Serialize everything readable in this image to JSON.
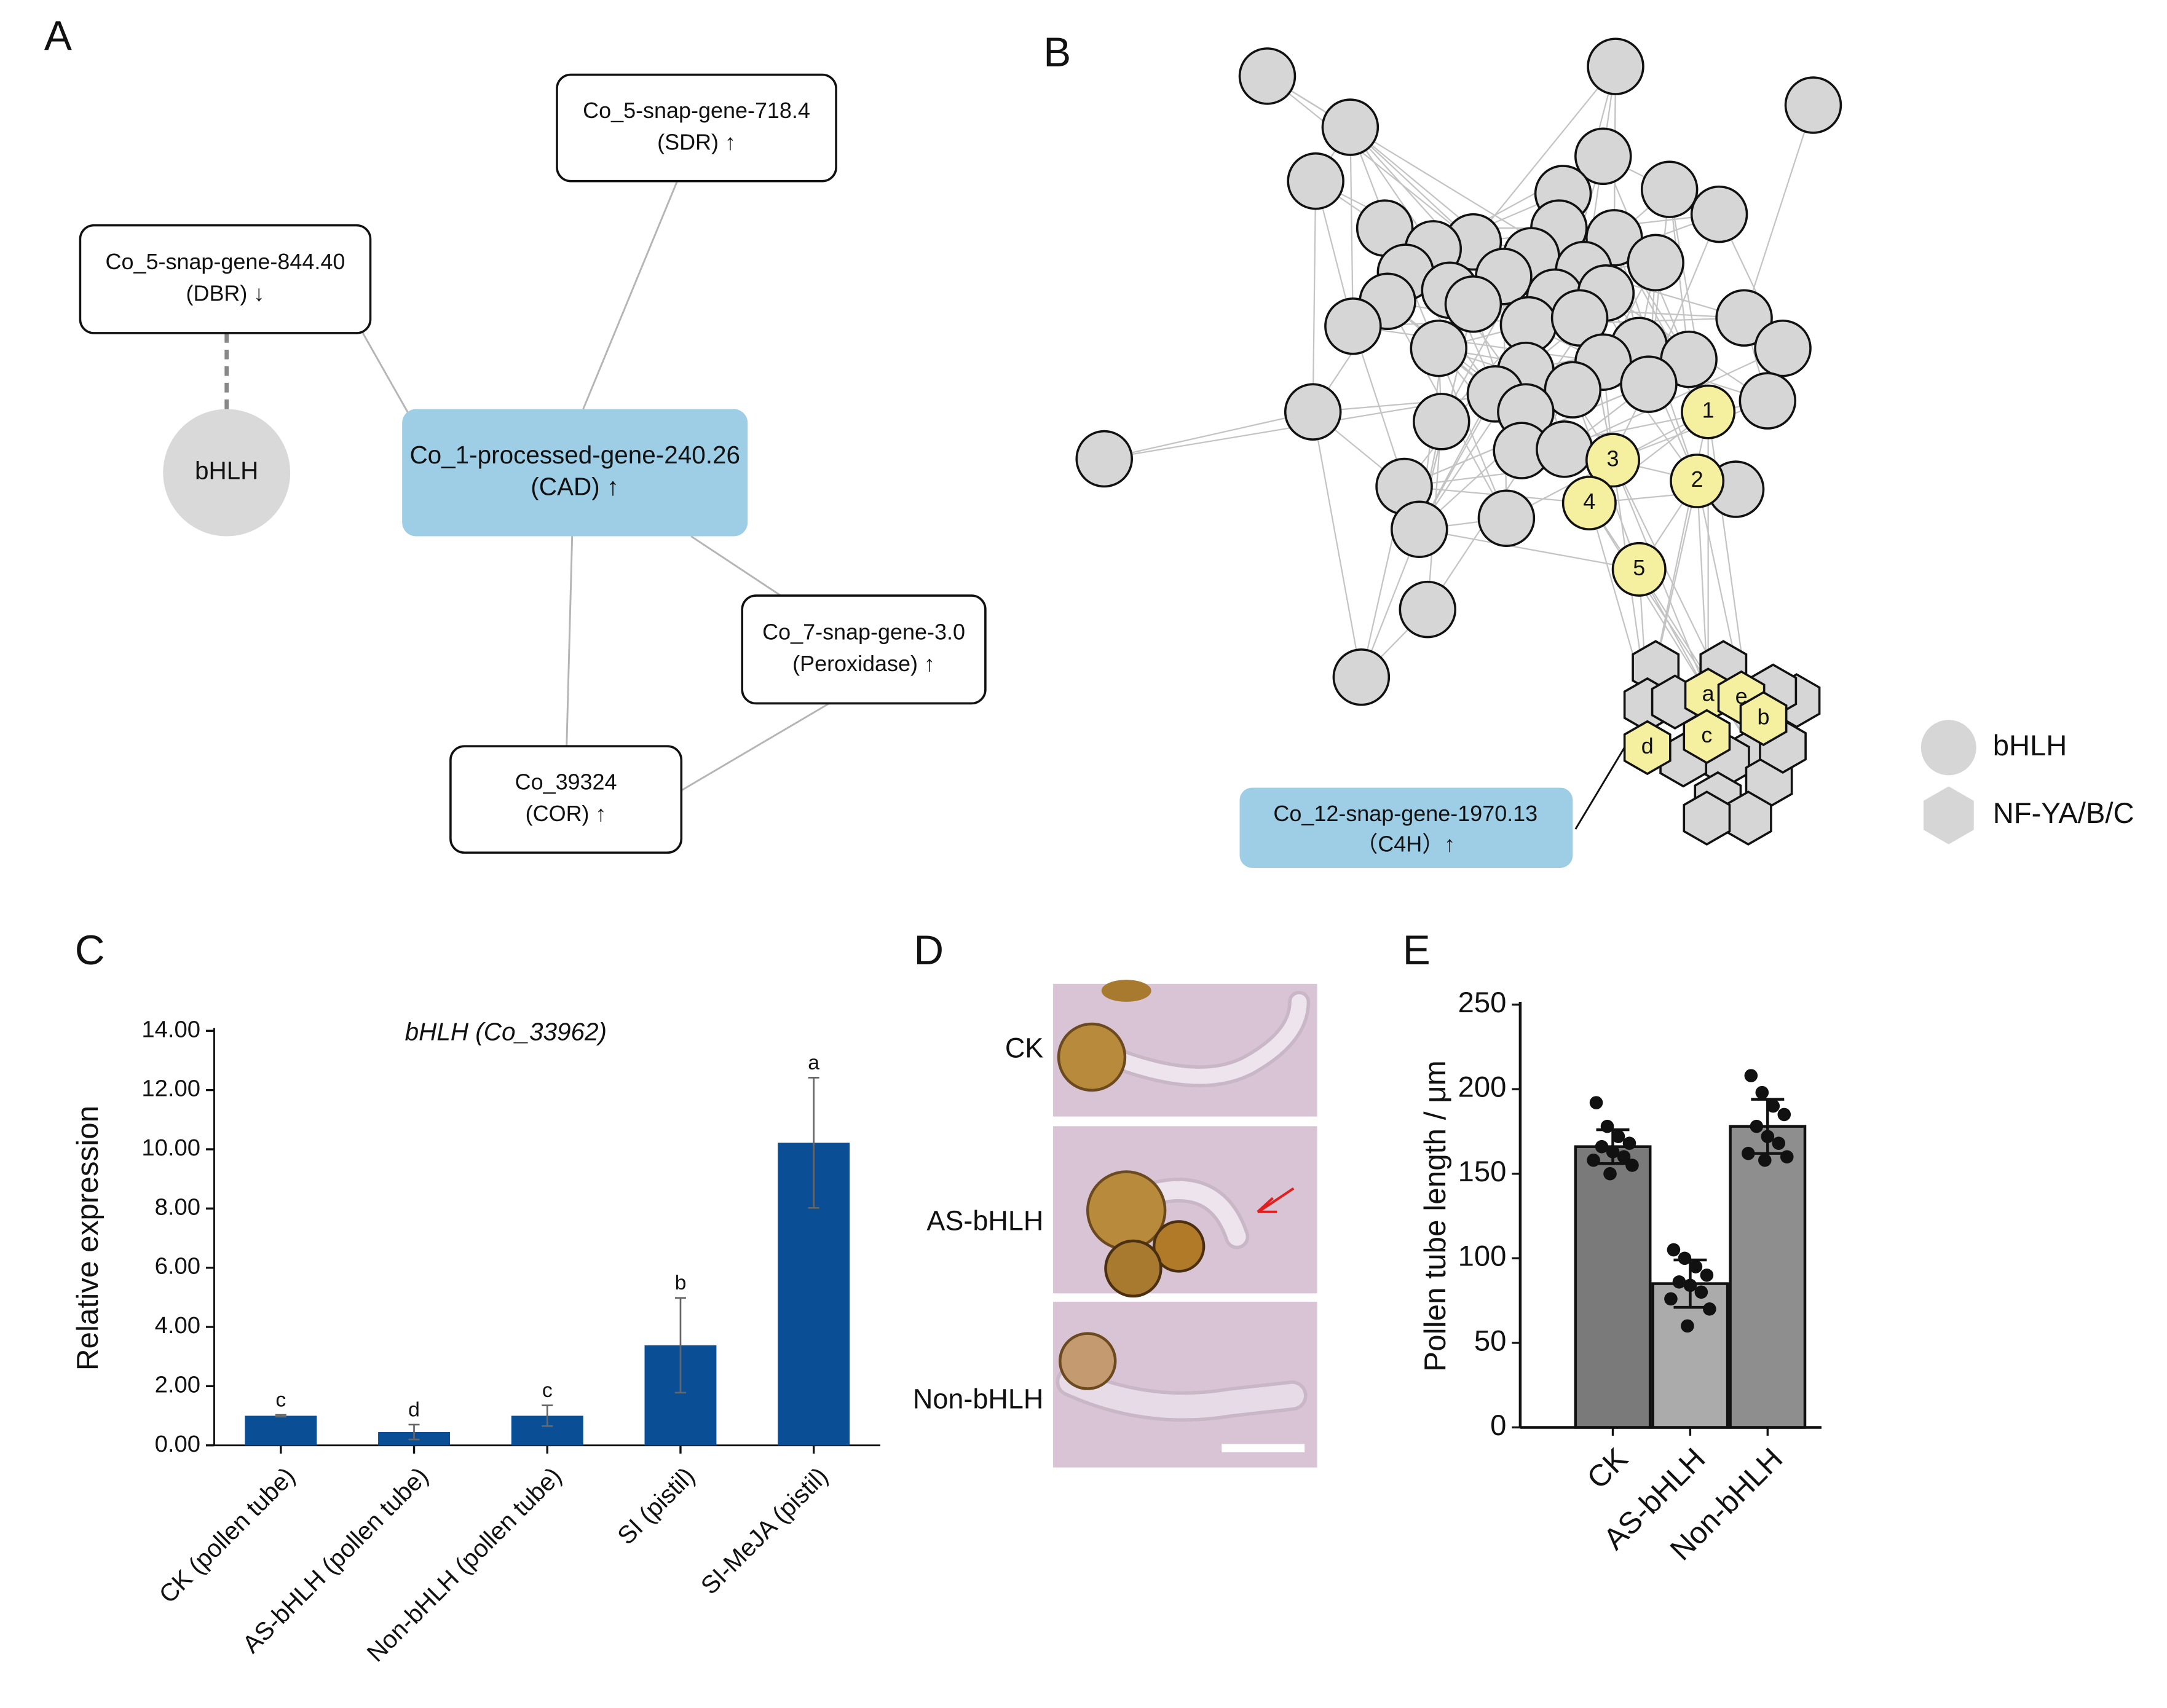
{
  "panel_labels": [
    "A",
    "B",
    "C",
    "D",
    "E"
  ],
  "panel_a": {
    "nodes": [
      {
        "lines": [
          "Co_5-snap-gene-718.4",
          "(SDR) ↑"
        ]
      },
      {
        "lines": [
          "Co_5-snap-gene-844.40",
          "(DBR) ↓"
        ]
      },
      {
        "lines": [
          "bHLH"
        ]
      },
      {
        "lines": [
          "Co_1-processed-gene-240.26",
          "(CAD) ↑"
        ]
      },
      {
        "lines": [
          "Co_7-snap-gene-3.0",
          "(Peroxidase) ↑"
        ]
      },
      {
        "lines": [
          "Co_39324",
          "(COR) ↑"
        ]
      }
    ]
  },
  "panel_b": {
    "numbered_nodes": [
      "1",
      "2",
      "3",
      "4",
      "5"
    ],
    "hex_nodes": [
      "a",
      "e",
      "b",
      "c",
      "d"
    ],
    "callout": {
      "lines": [
        "Co_12-snap-gene-1970.13",
        "（C4H）↑"
      ]
    },
    "legend": [
      "bHLH",
      "NF-YA/B/C"
    ]
  },
  "panel_d": {
    "labels": [
      "CK",
      "AS-bHLH",
      "Non-bHLH"
    ]
  },
  "chart_data": [
    {
      "type": "bar",
      "title": "bHLH (Co_33962)",
      "y_label": "Relative expression",
      "categories": [
        "CK (pollen tube)",
        "AS-bHLH (pollen tube)",
        "Non-bHLH (pollen tube)",
        "SI (pistil)",
        "SI-MeJA (pistil)"
      ],
      "values": [
        1.0,
        0.45,
        1.0,
        3.38,
        10.22
      ],
      "errors": [
        0.03,
        0.25,
        0.35,
        1.6,
        2.2
      ],
      "significance": [
        "c",
        "d",
        "c",
        "b",
        "a"
      ],
      "color": "#0a4f96",
      "ylim": [
        0,
        14
      ],
      "yticks": [
        {
          "value": 0,
          "label": "0.00"
        },
        {
          "value": 2,
          "label": "2.00"
        },
        {
          "value": 4,
          "label": "4.00"
        },
        {
          "value": 6,
          "label": "6.00"
        },
        {
          "value": 8,
          "label": "8.00"
        },
        {
          "value": 10,
          "label": "10.00"
        },
        {
          "value": 12,
          "label": "12.00"
        },
        {
          "value": 14,
          "label": "14.00"
        }
      ]
    },
    {
      "type": "bar_dots",
      "y_label": "Pollen tube length / μm",
      "categories": [
        "CK",
        "AS-bHLH",
        "Non-bHLH"
      ],
      "values": [
        166,
        85,
        178
      ],
      "errors": [
        10,
        14,
        16
      ],
      "colors": [
        "#7a7a7a",
        "#ababab",
        "#8e8e8e"
      ],
      "points": [
        [
          192,
          178,
          172,
          168,
          166,
          163,
          160,
          158,
          155,
          150
        ],
        [
          105,
          100,
          95,
          90,
          86,
          84,
          80,
          76,
          70,
          60
        ],
        [
          208,
          198,
          190,
          185,
          178,
          172,
          168,
          162,
          160,
          158
        ]
      ],
      "ylim": [
        0,
        250
      ],
      "yticks": [
        0,
        50,
        100,
        150,
        200,
        250
      ]
    }
  ]
}
